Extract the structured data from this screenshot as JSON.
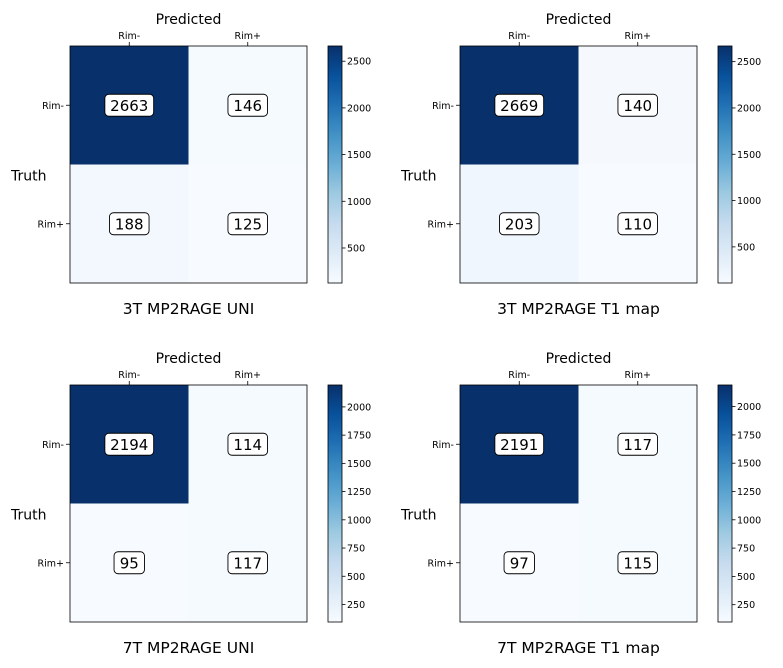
{
  "chart_data": [
    {
      "type": "heatmap",
      "title": "3T MP2RAGE UNI",
      "xlabel": "Predicted",
      "ylabel": "Truth",
      "x_categories": [
        "Rim-",
        "Rim+"
      ],
      "y_categories": [
        "Rim-",
        "Rim+"
      ],
      "values": [
        [
          2663,
          146
        ],
        [
          188,
          125
        ]
      ],
      "colorbar": {
        "ticks": [
          500,
          1000,
          1500,
          2000,
          2500
        ],
        "range": [
          125,
          2663
        ],
        "colormap": "Blues"
      }
    },
    {
      "type": "heatmap",
      "title": "3T MP2RAGE T1 map",
      "xlabel": "Predicted",
      "ylabel": "Truth",
      "x_categories": [
        "Rim-",
        "Rim+"
      ],
      "y_categories": [
        "Rim-",
        "Rim+"
      ],
      "values": [
        [
          2669,
          140
        ],
        [
          203,
          110
        ]
      ],
      "colorbar": {
        "ticks": [
          500,
          1000,
          1500,
          2000,
          2500
        ],
        "range": [
          110,
          2669
        ],
        "colormap": "Blues"
      }
    },
    {
      "type": "heatmap",
      "title": "7T MP2RAGE UNI",
      "xlabel": "Predicted",
      "ylabel": "Truth",
      "x_categories": [
        "Rim-",
        "Rim+"
      ],
      "y_categories": [
        "Rim-",
        "Rim+"
      ],
      "values": [
        [
          2194,
          114
        ],
        [
          95,
          117
        ]
      ],
      "colorbar": {
        "ticks": [
          250,
          500,
          750,
          1000,
          1250,
          1500,
          1750,
          2000
        ],
        "range": [
          95,
          2194
        ],
        "colormap": "Blues"
      }
    },
    {
      "type": "heatmap",
      "title": "7T MP2RAGE T1 map",
      "xlabel": "Predicted",
      "ylabel": "Truth",
      "x_categories": [
        "Rim-",
        "Rim+"
      ],
      "y_categories": [
        "Rim-",
        "Rim+"
      ],
      "values": [
        [
          2191,
          117
        ],
        [
          97,
          115
        ]
      ],
      "colorbar": {
        "ticks": [
          250,
          500,
          750,
          1000,
          1250,
          1500,
          1750,
          2000
        ],
        "range": [
          97,
          2191
        ],
        "colormap": "Blues"
      }
    }
  ]
}
